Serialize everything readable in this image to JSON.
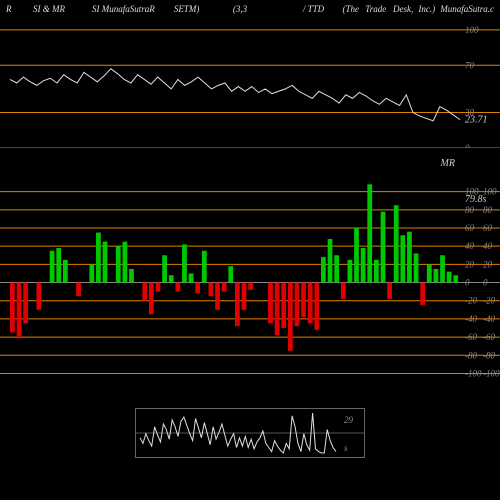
{
  "header": {
    "h1": "R",
    "h2": "SI & MR",
    "h3": "SI MunafaSutraR",
    "h4": "SETM)",
    "h5": "(3,3",
    "h6": "/ TTD",
    "h7": "(The",
    "h8": "Trade",
    "h9": "Desk,",
    "h10": "Inc.)",
    "h11": "MunafaSutra.c"
  },
  "topPanel": {
    "gridColor": "#e08000",
    "lineColor": "#e0e0e0",
    "yticks": [
      0,
      30,
      70,
      100
    ],
    "ylim": [
      0,
      110
    ],
    "endValue": "23.71",
    "endValueColor": "#e08000",
    "series": [
      58,
      55,
      60,
      56,
      53,
      57,
      59,
      55,
      62,
      58,
      55,
      64,
      60,
      56,
      61,
      67,
      63,
      58,
      55,
      62,
      58,
      54,
      60,
      55,
      50,
      58,
      53,
      56,
      60,
      55,
      50,
      53,
      55,
      48,
      52,
      48,
      52,
      47,
      50,
      46,
      48,
      50,
      53,
      48,
      45,
      42,
      48,
      45,
      42,
      38,
      45,
      42,
      47,
      44,
      40,
      37,
      42,
      39,
      36,
      45,
      30,
      27,
      25,
      23,
      35,
      32,
      28,
      24
    ]
  },
  "midPanel": {
    "title": "MR",
    "titleColor": "#ccc",
    "gridColor": "#e08000",
    "zeroColor": "#888",
    "posColor": "#00c800",
    "negColor": "#e00000",
    "value1": "79.8s",
    "value2": "29",
    "yticks": [
      -100,
      -80,
      -60,
      -40,
      -20,
      0,
      20,
      40,
      60,
      80,
      100
    ],
    "ylim": [
      -105,
      115
    ],
    "bars": [
      -55,
      -60,
      -45,
      0,
      -30,
      0,
      35,
      38,
      25,
      0,
      -15,
      0,
      20,
      55,
      45,
      0,
      40,
      45,
      15,
      0,
      -20,
      -35,
      -10,
      30,
      8,
      -10,
      42,
      10,
      -12,
      35,
      -15,
      -30,
      -10,
      18,
      -48,
      -30,
      -8,
      0,
      0,
      -45,
      -58,
      -50,
      -75,
      -48,
      -38,
      -45,
      -52,
      28,
      48,
      30,
      -18,
      25,
      60,
      38,
      108,
      25,
      78,
      -18,
      85,
      52,
      56,
      32,
      -25,
      20,
      15,
      30,
      12,
      8
    ]
  },
  "bottomPanel": {
    "lineColor": "#e0e0e0",
    "boxBorder": "#666",
    "label1": "29",
    "label2": "s",
    "series": [
      12,
      8,
      15,
      10,
      6,
      20,
      14,
      9,
      22,
      18,
      11,
      25,
      20,
      13,
      24,
      27,
      21,
      15,
      10,
      26,
      19,
      12,
      23,
      15,
      7,
      20,
      11,
      16,
      22,
      14,
      6,
      11,
      15,
      5,
      12,
      6,
      13,
      5,
      11,
      4,
      9,
      12,
      17,
      8,
      5,
      2,
      10,
      6,
      3,
      1,
      8,
      4,
      28,
      20,
      8,
      2,
      15,
      7,
      3,
      30,
      4,
      2,
      1,
      1,
      18,
      10,
      5,
      2
    ]
  },
  "layout": {
    "plotLeft": 10,
    "plotRight": 460,
    "labelX": 465
  }
}
